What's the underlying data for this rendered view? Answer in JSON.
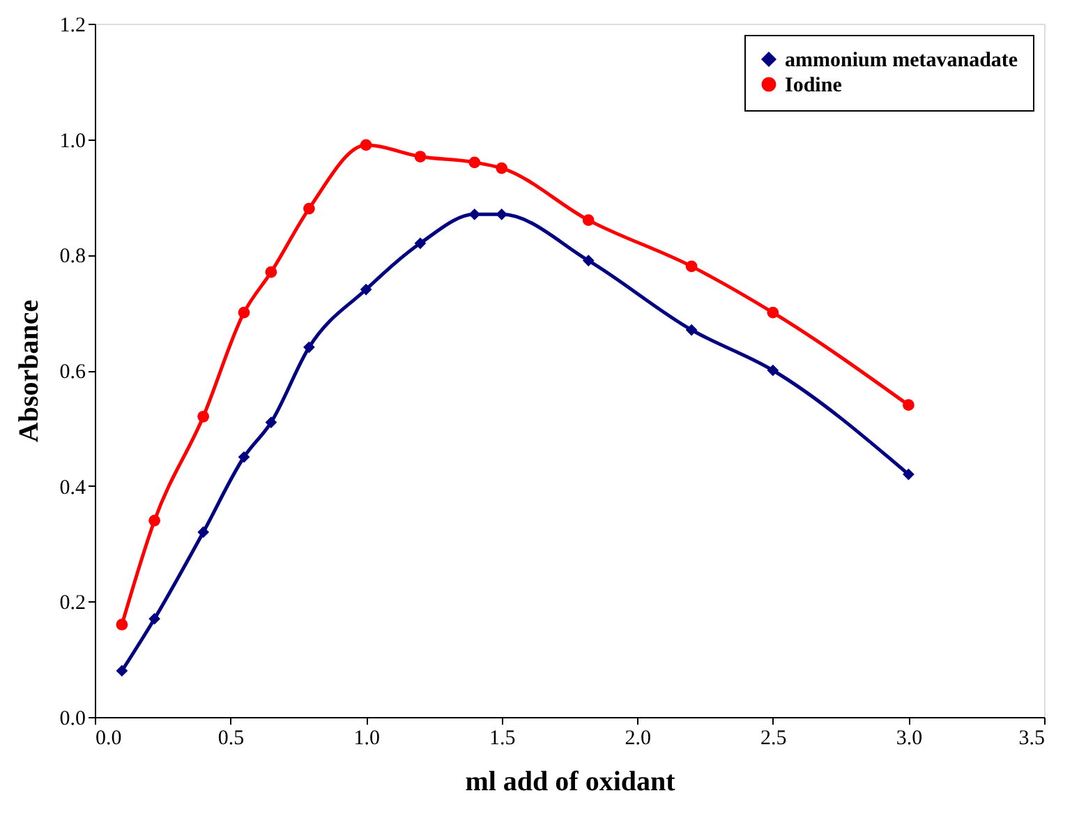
{
  "chart_data": {
    "type": "line",
    "xlabel": "ml add of oxidant",
    "ylabel": "Absorbance",
    "xlim": [
      0,
      3.5
    ],
    "xticks": [
      {
        "value": 0,
        "label": "0.0"
      },
      {
        "value": 0.5,
        "label": "0.5"
      },
      {
        "value": 1,
        "label": "1.0"
      },
      {
        "value": 1.5,
        "label": "1.5"
      },
      {
        "value": 2,
        "label": "2.0"
      },
      {
        "value": 2.5,
        "label": "2.5"
      },
      {
        "value": 3,
        "label": "3.0"
      },
      {
        "value": 3.5,
        "label": "3.5"
      }
    ],
    "ylim": [
      0,
      1.2
    ],
    "yticks": [
      {
        "value": 0,
        "label": "0.0"
      },
      {
        "value": 0.2,
        "label": "0.2"
      },
      {
        "value": 0.4,
        "label": "0.4"
      },
      {
        "value": 0.6,
        "label": "0.6"
      },
      {
        "value": 0.8,
        "label": "0.8"
      },
      {
        "value": 1,
        "label": "1.0"
      },
      {
        "value": 1.2,
        "label": "1.2"
      }
    ],
    "grid": false,
    "legend": "top right",
    "line_style": "solid",
    "x": [
      0.1,
      0.22,
      0.4,
      0.55,
      0.65,
      0.79,
      1.0,
      1.2,
      1.4,
      1.5,
      1.82,
      2.2,
      2.5,
      3.0
    ],
    "series": [
      {
        "name": "ammonium metavanadate",
        "color": "#000080",
        "marker": "diamond",
        "values": [
          0.08,
          0.17,
          0.32,
          0.45,
          0.51,
          0.64,
          0.74,
          0.82,
          0.87,
          0.87,
          0.79,
          0.67,
          0.6,
          0.42
        ]
      },
      {
        "name": "Iodine",
        "color": "#ff0000",
        "marker": "circle",
        "values": [
          0.16,
          0.34,
          0.52,
          0.7,
          0.77,
          0.88,
          0.99,
          0.97,
          0.96,
          0.95,
          0.86,
          0.78,
          0.7,
          0.54
        ]
      }
    ]
  }
}
